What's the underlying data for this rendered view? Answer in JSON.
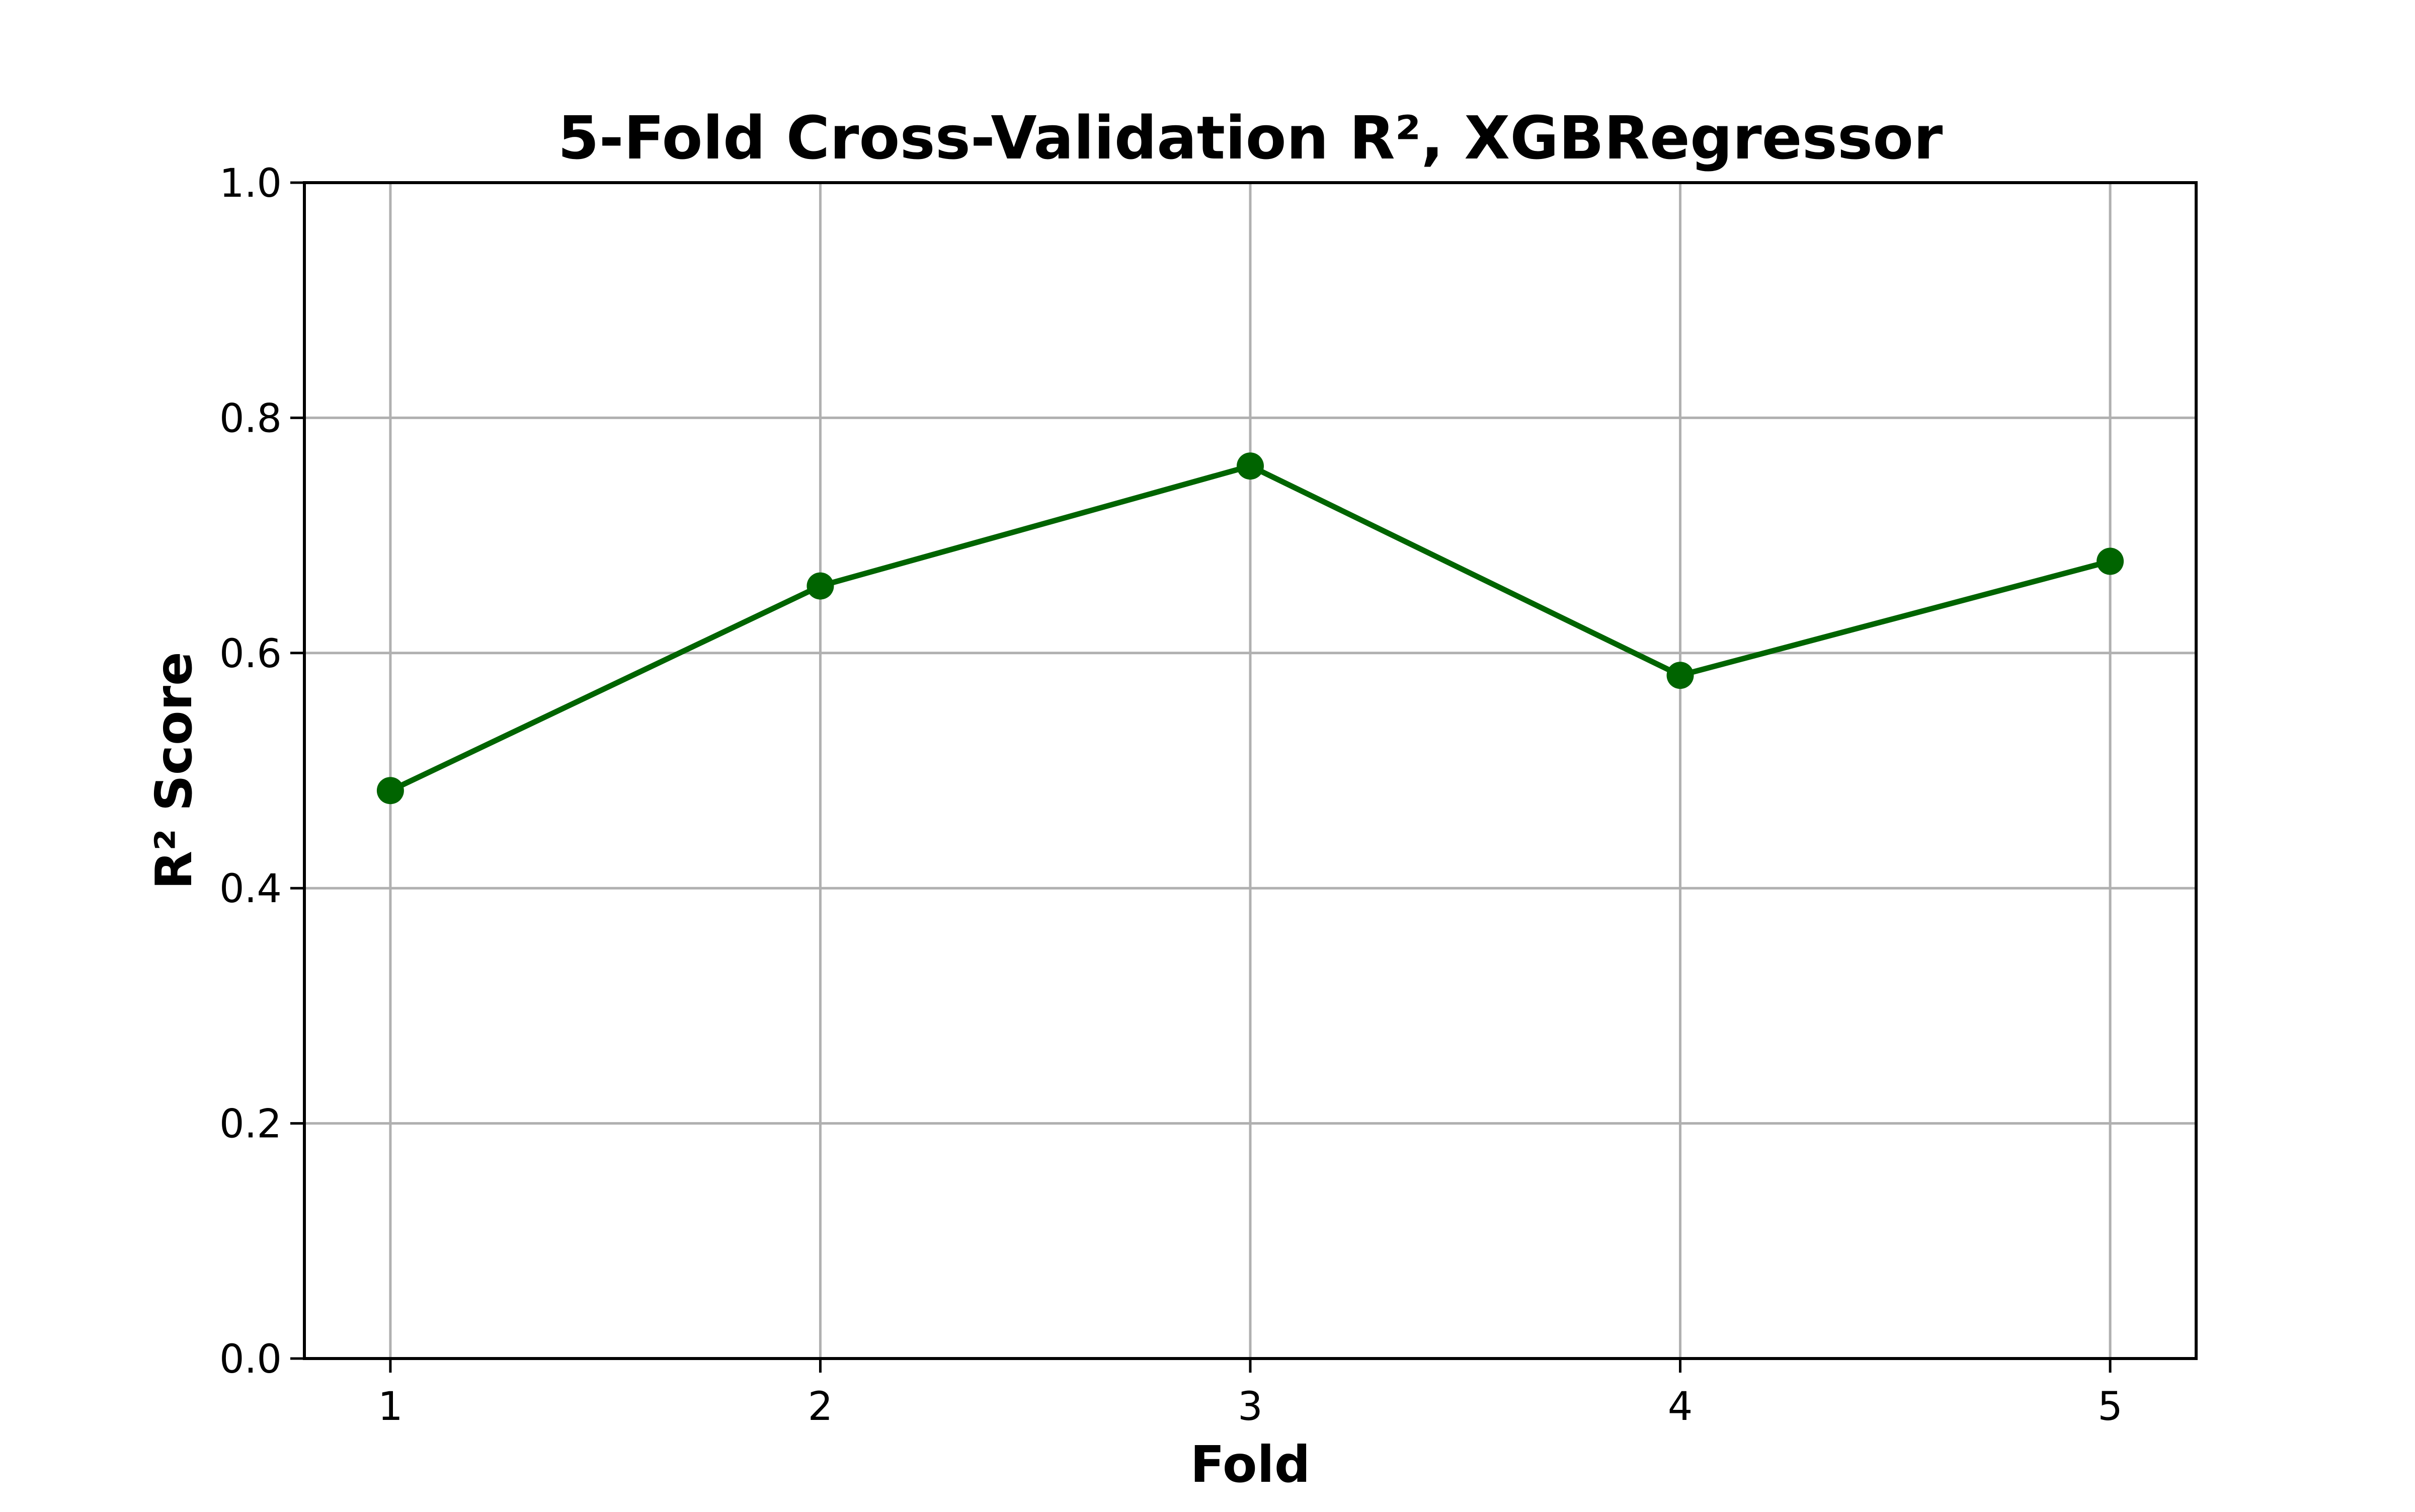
{
  "chart_data": {
    "type": "line",
    "title": "5-Fold Cross-Validation R², XGBRegressor",
    "xlabel": "Fold",
    "ylabel": "R² Score",
    "x": [
      1,
      2,
      3,
      4,
      5
    ],
    "series": [
      {
        "values": [
          0.483,
          0.657,
          0.759,
          0.581,
          0.678
        ],
        "color": "#006400",
        "marker": "circle"
      }
    ],
    "xlim": [
      0.8,
      5.2
    ],
    "ylim": [
      0.0,
      1.0
    ],
    "xticks": [
      1,
      2,
      3,
      4,
      5
    ],
    "xtick_labels": [
      "1",
      "2",
      "3",
      "4",
      "5"
    ],
    "yticks": [
      0.0,
      0.2,
      0.4,
      0.6,
      0.8,
      1.0
    ],
    "ytick_labels": [
      "0.0",
      "0.2",
      "0.4",
      "0.6",
      "0.8",
      "1.0"
    ],
    "grid": true,
    "grid_color": "#b0b0b0",
    "legend": "none"
  }
}
